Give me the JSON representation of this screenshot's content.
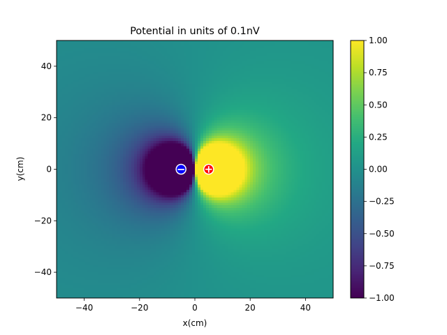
{
  "chart_data": {
    "type": "heatmap",
    "title": "Potential in units of 0.1nV",
    "xlabel": "x(cm)",
    "ylabel": "y(cm)",
    "xlim": [
      -50,
      50
    ],
    "ylim": [
      -50,
      50
    ],
    "xticks": [
      -40,
      -20,
      0,
      20,
      40
    ],
    "yticks": [
      -40,
      -20,
      0,
      20,
      40
    ],
    "colormap": "viridis",
    "clim": [
      -1.0,
      1.0
    ],
    "colorbar_ticks": [
      -1.0,
      -0.75,
      -0.5,
      -0.25,
      0.0,
      0.25,
      0.5,
      0.75,
      1.0
    ],
    "colorbar_tick_labels": [
      "−1.00",
      "−0.75",
      "−0.50",
      "−0.25",
      "0.00",
      "0.25",
      "0.50",
      "0.75",
      "1.00"
    ],
    "grid": false,
    "charges": [
      {
        "sign": "negative",
        "x": -5,
        "y": 0,
        "color": "#0000ff",
        "symbol": "−"
      },
      {
        "sign": "positive",
        "x": 5,
        "y": 0,
        "color": "#ff0000",
        "symbol": "+"
      }
    ]
  }
}
